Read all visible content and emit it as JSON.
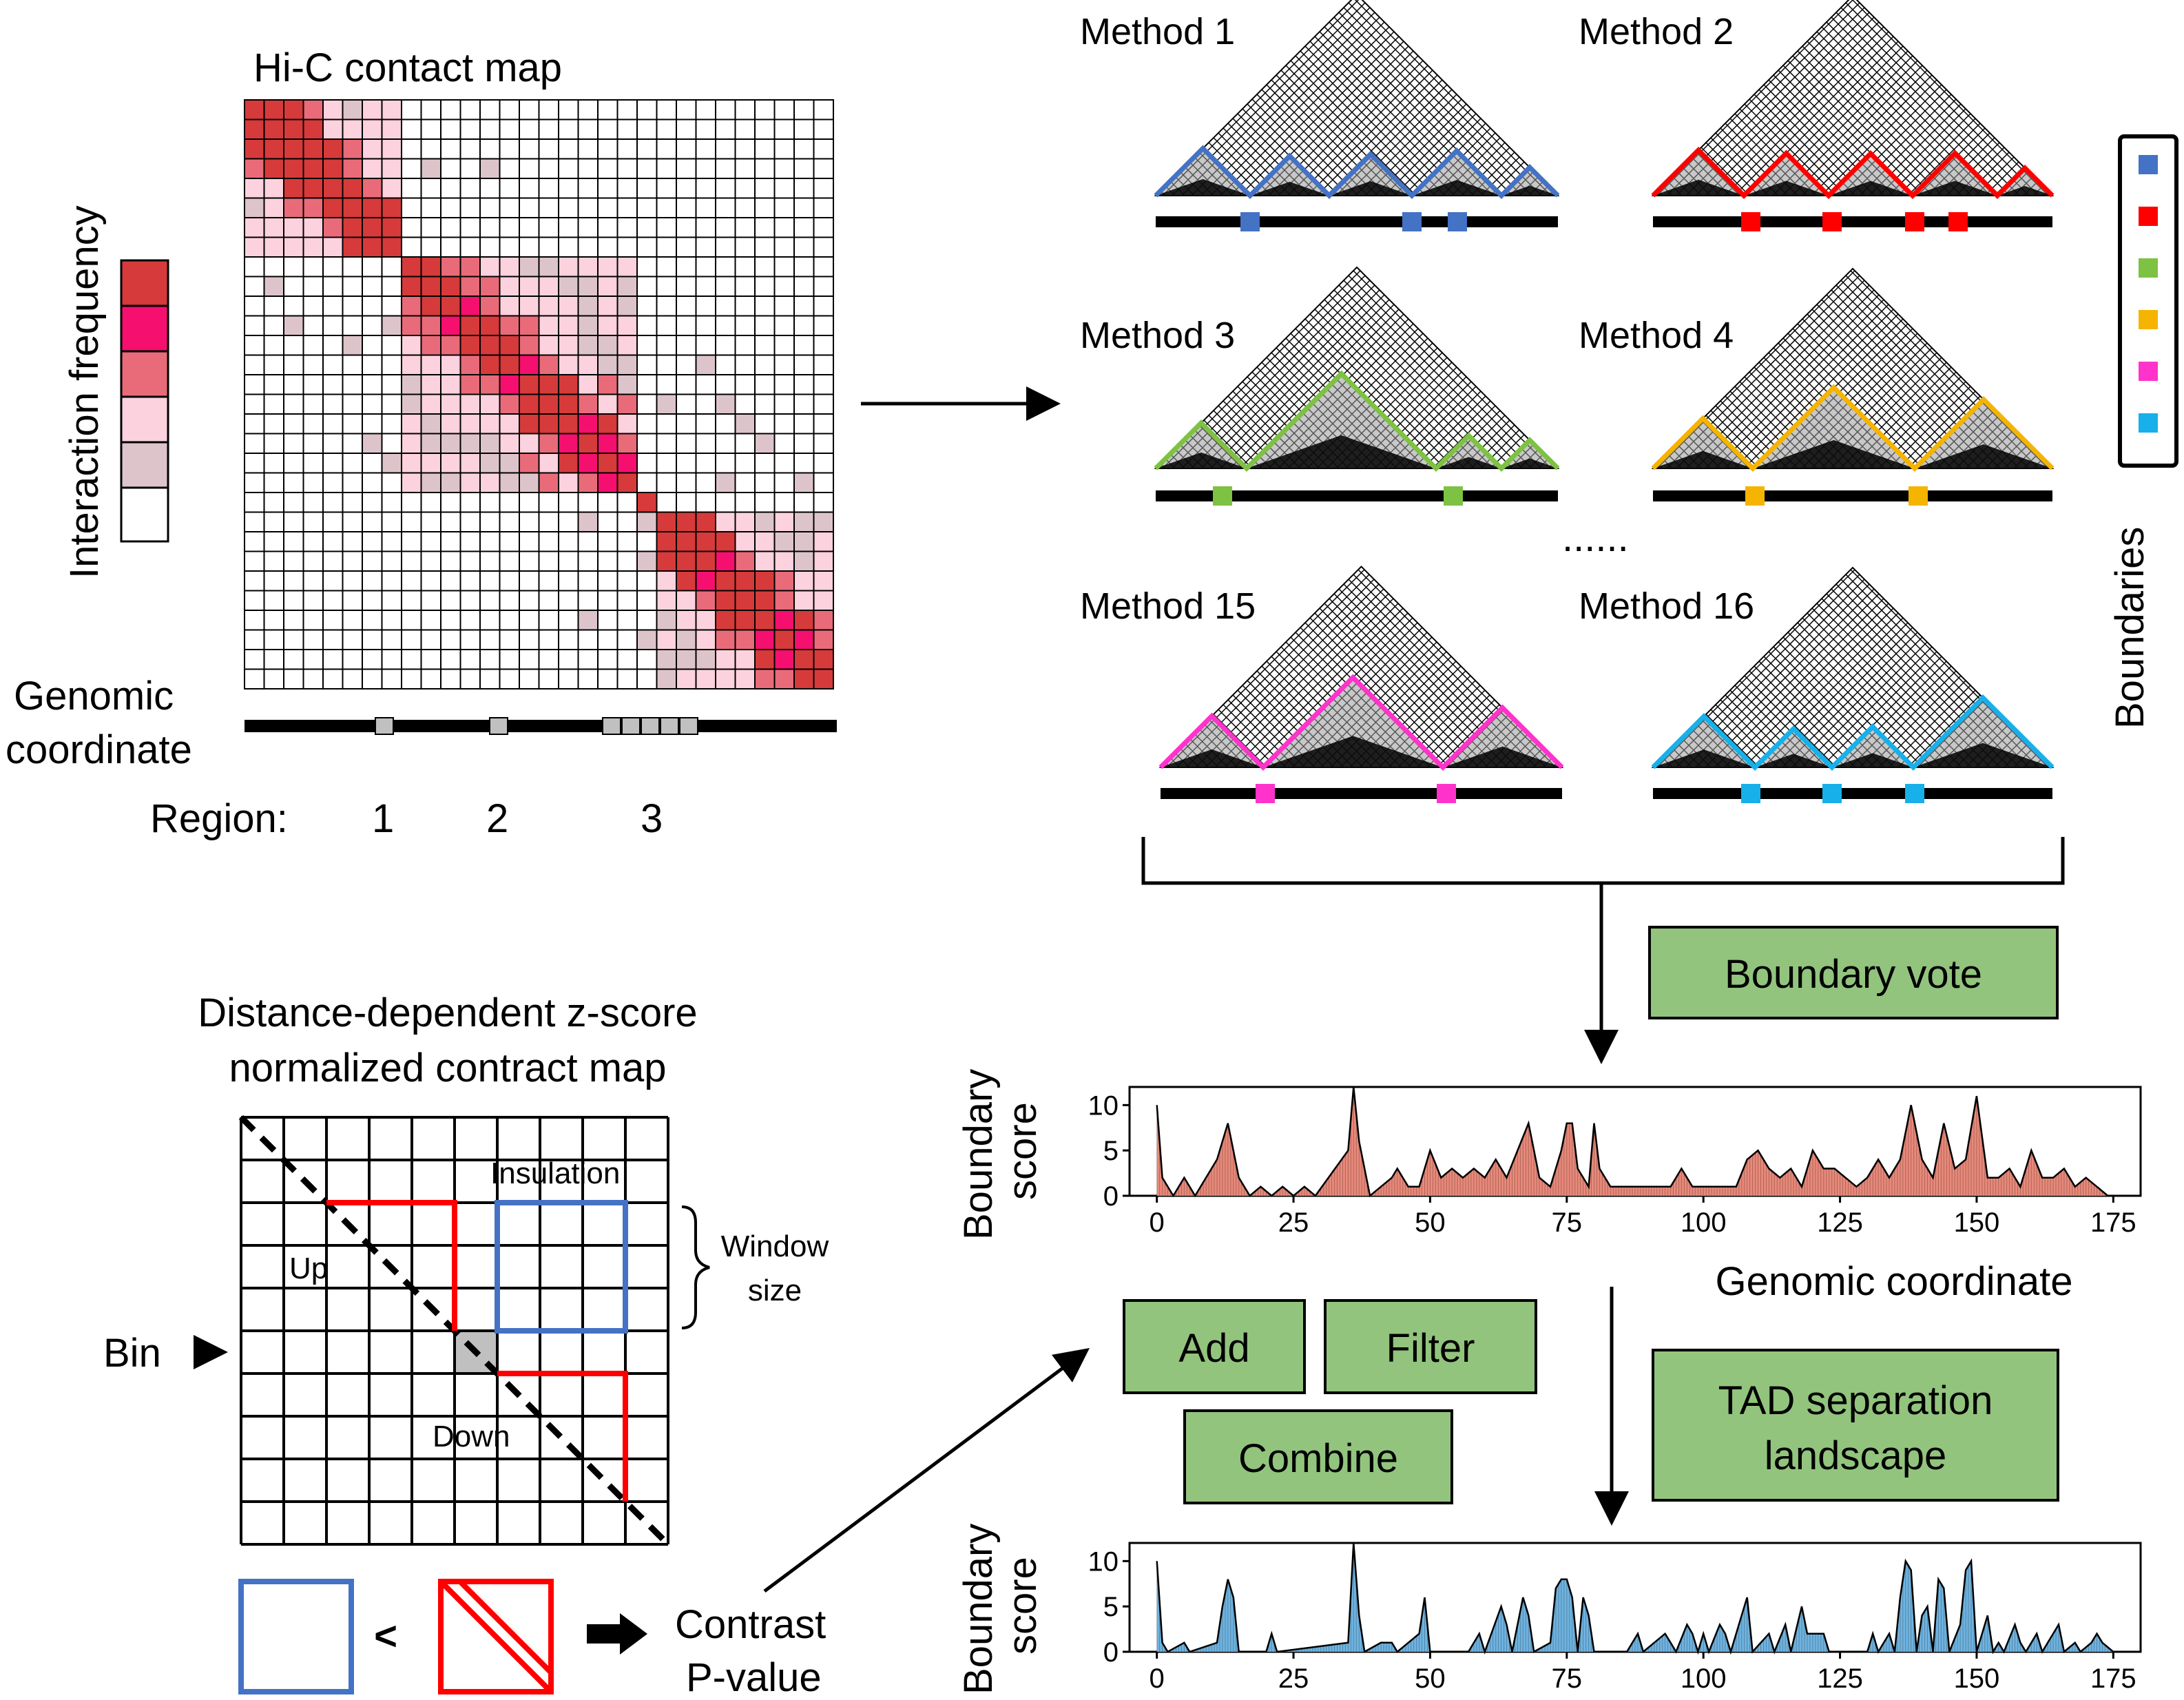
{
  "colors": {
    "scale": [
      "#d73a3a",
      "#f50f6e",
      "#e96b79",
      "#fbd2de",
      "#ddc4cb",
      "#ffffff"
    ],
    "methods": [
      "#4472c4",
      "#ff0000",
      "#7dc242",
      "#f5b400",
      "#ff33cc",
      "#17b0ea"
    ],
    "box_fill": "#92c47d",
    "bar_red": "#e8897a",
    "bar_blue": "#6fb3e0",
    "tile_gray": "#c0c0c0"
  },
  "hic": {
    "title": "Hi-C contact map",
    "legend_label": "Interaction frequency",
    "coord_label_1": "Genomic",
    "coord_label_2": "coordinate",
    "region_label": "Region:",
    "regions": [
      "1",
      "2",
      "3"
    ]
  },
  "methods": {
    "labels": [
      "Method 1",
      "Method 2",
      "Method 3",
      "Method 4",
      "Method 15",
      "Method 16"
    ],
    "ellipsis": "......",
    "legend_title": "Boundaries"
  },
  "boxes": {
    "vote": "Boundary vote",
    "add": "Add",
    "filter": "Filter",
    "combine": "Combine",
    "tad_1": "TAD separation",
    "tad_2": "landscape"
  },
  "zmap": {
    "title_1": "Distance-dependent z-score",
    "title_2": "normalized contract map",
    "insulation": "Insulation",
    "up": "Up",
    "down": "Down",
    "window_1": "Window",
    "window_2": "size",
    "bin": "Bin",
    "lt": "<",
    "contrast_1": "Contrast",
    "contrast_2": "P-value"
  },
  "chart_data": [
    {
      "type": "area",
      "title": "",
      "ylabel": "Boundary score",
      "xlabel": "Genomic coordinate",
      "ylim": [
        0,
        12
      ],
      "xlim": [
        -5,
        180
      ],
      "yticks": [
        0,
        5,
        10
      ],
      "xticks": [
        0,
        25,
        50,
        75,
        100,
        125,
        150,
        175
      ],
      "series": [
        {
          "name": "boundary-vote",
          "points": [
            [
              0,
              10
            ],
            [
              1,
              2
            ],
            [
              3,
              0
            ],
            [
              5,
              2
            ],
            [
              7,
              0
            ],
            [
              11,
              4
            ],
            [
              13,
              8
            ],
            [
              15,
              2
            ],
            [
              17,
              0
            ],
            [
              19,
              1
            ],
            [
              21,
              0
            ],
            [
              23,
              1
            ],
            [
              25,
              0
            ],
            [
              27,
              1
            ],
            [
              29,
              0
            ],
            [
              35,
              5
            ],
            [
              36,
              12
            ],
            [
              37,
              6
            ],
            [
              39,
              0
            ],
            [
              41,
              1
            ],
            [
              43,
              2
            ],
            [
              44,
              3
            ],
            [
              46,
              1
            ],
            [
              48,
              1
            ],
            [
              50,
              5
            ],
            [
              52,
              2
            ],
            [
              54,
              3
            ],
            [
              56,
              2
            ],
            [
              58,
              3
            ],
            [
              60,
              2
            ],
            [
              62,
              4
            ],
            [
              64,
              2
            ],
            [
              66,
              5
            ],
            [
              68,
              8
            ],
            [
              70,
              2
            ],
            [
              72,
              1
            ],
            [
              74,
              5
            ],
            [
              75,
              8
            ],
            [
              76,
              8
            ],
            [
              77,
              3
            ],
            [
              79,
              1
            ],
            [
              80,
              8
            ],
            [
              81,
              3
            ],
            [
              83,
              1
            ],
            [
              86,
              1
            ],
            [
              88,
              1
            ],
            [
              90,
              1
            ],
            [
              92,
              1
            ],
            [
              94,
              1
            ],
            [
              96,
              3
            ],
            [
              98,
              1
            ],
            [
              100,
              1
            ],
            [
              102,
              1
            ],
            [
              104,
              1
            ],
            [
              106,
              1
            ],
            [
              108,
              4
            ],
            [
              110,
              5
            ],
            [
              112,
              3
            ],
            [
              114,
              2
            ],
            [
              116,
              3
            ],
            [
              118,
              1
            ],
            [
              120,
              5
            ],
            [
              122,
              3
            ],
            [
              124,
              3
            ],
            [
              126,
              2
            ],
            [
              128,
              1
            ],
            [
              130,
              2
            ],
            [
              132,
              4
            ],
            [
              134,
              2
            ],
            [
              136,
              4
            ],
            [
              138,
              10
            ],
            [
              140,
              4
            ],
            [
              142,
              2
            ],
            [
              144,
              8
            ],
            [
              146,
              3
            ],
            [
              148,
              4
            ],
            [
              150,
              11
            ],
            [
              152,
              2
            ],
            [
              154,
              2
            ],
            [
              156,
              3
            ],
            [
              158,
              1
            ],
            [
              160,
              5
            ],
            [
              162,
              2
            ],
            [
              164,
              2
            ],
            [
              166,
              3
            ],
            [
              168,
              1
            ],
            [
              170,
              2
            ],
            [
              172,
              1
            ],
            [
              174,
              0
            ]
          ]
        }
      ]
    },
    {
      "type": "area",
      "title": "",
      "ylabel": "Boundary score",
      "xlabel": "",
      "ylim": [
        0,
        12
      ],
      "xlim": [
        -5,
        180
      ],
      "yticks": [
        0,
        5,
        10
      ],
      "xticks": [
        0,
        25,
        50,
        75,
        100,
        125,
        150,
        175
      ],
      "series": [
        {
          "name": "tad-separation-landscape",
          "points": [
            [
              0,
              10
            ],
            [
              1,
              1
            ],
            [
              2,
              0
            ],
            [
              5,
              1
            ],
            [
              6,
              0
            ],
            [
              11,
              1
            ],
            [
              12,
              5
            ],
            [
              13,
              8
            ],
            [
              14,
              6
            ],
            [
              15,
              0
            ],
            [
              20,
              0
            ],
            [
              21,
              2
            ],
            [
              22,
              0
            ],
            [
              35,
              1
            ],
            [
              36,
              12
            ],
            [
              37,
              4
            ],
            [
              38,
              0
            ],
            [
              41,
              1
            ],
            [
              43,
              1
            ],
            [
              44,
              0
            ],
            [
              48,
              2
            ],
            [
              49,
              6
            ],
            [
              50,
              0
            ],
            [
              57,
              0
            ],
            [
              59,
              2
            ],
            [
              60,
              0
            ],
            [
              63,
              5
            ],
            [
              64,
              3
            ],
            [
              65,
              0
            ],
            [
              67,
              6
            ],
            [
              68,
              4
            ],
            [
              69,
              0
            ],
            [
              72,
              1
            ],
            [
              73,
              7
            ],
            [
              74,
              8
            ],
            [
              75,
              8
            ],
            [
              76,
              6
            ],
            [
              77,
              0
            ],
            [
              78,
              6
            ],
            [
              79,
              4
            ],
            [
              80,
              0
            ],
            [
              86,
              0
            ],
            [
              88,
              2
            ],
            [
              89,
              0
            ],
            [
              93,
              2
            ],
            [
              94,
              1
            ],
            [
              95,
              0
            ],
            [
              97,
              3
            ],
            [
              98,
              2
            ],
            [
              99,
              0
            ],
            [
              100,
              2
            ],
            [
              101,
              0
            ],
            [
              103,
              3
            ],
            [
              104,
              2
            ],
            [
              105,
              0
            ],
            [
              107,
              4
            ],
            [
              108,
              6
            ],
            [
              109,
              0
            ],
            [
              112,
              2
            ],
            [
              113,
              0
            ],
            [
              115,
              3
            ],
            [
              116,
              0
            ],
            [
              118,
              5
            ],
            [
              119,
              2
            ],
            [
              120,
              2
            ],
            [
              121,
              2
            ],
            [
              122,
              2
            ],
            [
              123,
              0
            ],
            [
              130,
              0
            ],
            [
              131,
              2
            ],
            [
              132,
              0
            ],
            [
              134,
              2
            ],
            [
              135,
              0
            ],
            [
              136,
              6
            ],
            [
              137,
              10
            ],
            [
              138,
              9
            ],
            [
              139,
              0
            ],
            [
              140,
              4
            ],
            [
              141,
              5
            ],
            [
              142,
              0
            ],
            [
              143,
              8
            ],
            [
              144,
              7
            ],
            [
              145,
              0
            ],
            [
              147,
              3
            ],
            [
              148,
              9
            ],
            [
              149,
              10
            ],
            [
              150,
              0
            ],
            [
              152,
              4
            ],
            [
              153,
              0
            ],
            [
              154,
              1
            ],
            [
              155,
              0
            ],
            [
              157,
              3
            ],
            [
              158,
              1
            ],
            [
              159,
              0
            ],
            [
              161,
              2
            ],
            [
              162,
              0
            ],
            [
              165,
              3
            ],
            [
              166,
              0
            ],
            [
              168,
              1
            ],
            [
              169,
              0
            ],
            [
              171,
              1
            ],
            [
              172,
              2
            ],
            [
              173,
              1
            ],
            [
              175,
              0
            ]
          ]
        }
      ]
    }
  ]
}
